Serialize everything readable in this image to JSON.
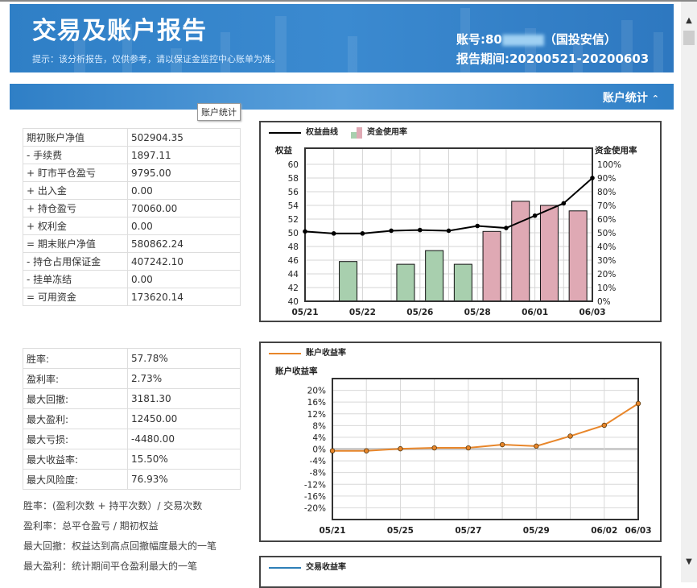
{
  "header": {
    "title": "交易及账户报告",
    "hint": "提示：该分析报告，仅供参考，请以保证金监控中心账单为准。",
    "account_prefix": "账号:80",
    "account_suffix": "（国投安信）",
    "period": "报告期间:20200521-20200603"
  },
  "section": {
    "label": "账户统计",
    "collapse_icon": "double-chevron-up-icon",
    "tooltip": "账户统计"
  },
  "account_table": [
    {
      "k": "期初账户净值",
      "v": "502904.35"
    },
    {
      "k": "- 手续费",
      "v": "1897.11"
    },
    {
      "k": "+ 盯市平仓盈亏",
      "v": "9795.00"
    },
    {
      "k": "+ 出入金",
      "v": "0.00"
    },
    {
      "k": "+ 持仓盈亏",
      "v": "70060.00"
    },
    {
      "k": "+ 权利金",
      "v": "0.00"
    },
    {
      "k": "= 期末账户净值",
      "v": "580862.24"
    },
    {
      "k": "- 持仓占用保证金",
      "v": "407242.10"
    },
    {
      "k": "- 挂单冻结",
      "v": "0.00"
    },
    {
      "k": "= 可用资金",
      "v": "173620.14"
    }
  ],
  "stats_table": [
    {
      "k": "胜率:",
      "v": "57.78%"
    },
    {
      "k": "盈利率:",
      "v": "2.73%"
    },
    {
      "k": "最大回撤:",
      "v": "3181.30"
    },
    {
      "k": "最大盈利:",
      "v": "12450.00"
    },
    {
      "k": "最大亏损:",
      "v": "-4480.00"
    },
    {
      "k": "最大收益率:",
      "v": "15.50%"
    },
    {
      "k": "最大风险度:",
      "v": "76.93%"
    }
  ],
  "notes": [
    "胜率：(盈利次数 + 持平次数）/ 交易次数",
    "盈利率：总平仓盈亏 / 期初权益",
    "最大回撤：权益达到高点回撤幅度最大的一笔",
    "最大盈利：统计期间平仓盈利最大的一笔"
  ],
  "chart_data": [
    {
      "type": "line+bar",
      "legend": [
        "权益曲线",
        "资金使用率"
      ],
      "ylabel_left": "权益",
      "ylabel_right": "资金使用率",
      "ylim_left": [
        40,
        60
      ],
      "yticks_left": [
        40,
        42,
        44,
        46,
        48,
        50,
        52,
        54,
        56,
        58,
        60
      ],
      "ylim_right": [
        0,
        100
      ],
      "yticks_right": [
        "0%",
        "10%",
        "20%",
        "30%",
        "40%",
        "50%",
        "60%",
        "70%",
        "80%",
        "90%",
        "100%"
      ],
      "xtick_labels": [
        "05/21",
        "05/22",
        "05/26",
        "05/28",
        "06/01",
        "06/03"
      ],
      "line_values": [
        50.2,
        49.9,
        49.9,
        50.3,
        50.4,
        50.3,
        51.0,
        50.7,
        52.5,
        54.3,
        58.0
      ],
      "bar_values": [
        null,
        29,
        null,
        27,
        37,
        27,
        51,
        73,
        70,
        66
      ],
      "bar_colors": [
        "#a8cfae",
        "#a8cfae",
        "#a8cfae",
        "#a8cfae",
        "#a8cfae",
        "#a8cfae",
        "#dfa9b4",
        "#dfa9b4",
        "#dfa9b4",
        "#dfa9b4"
      ],
      "line_color": "#000000",
      "grid": true
    },
    {
      "type": "line",
      "legend": [
        "账户收益率"
      ],
      "ylabel": "账户收益率",
      "ylim": [
        -24,
        24
      ],
      "yticks": [
        "-20%",
        "-16%",
        "-12%",
        "-8%",
        "-4%",
        "0%",
        "4%",
        "8%",
        "12%",
        "16%",
        "20%"
      ],
      "xtick_labels": [
        "05/21",
        "05/25",
        "05/27",
        "05/29",
        "06/02",
        "06/03"
      ],
      "values": [
        -0.6,
        -0.6,
        0.1,
        0.4,
        0.4,
        1.5,
        1.0,
        4.4,
        8.1,
        15.5
      ],
      "line_color": "#e8862a",
      "grid": true
    },
    {
      "type": "line",
      "legend": [
        "交易收益率"
      ],
      "line_color": "#2e7fb8"
    }
  ]
}
